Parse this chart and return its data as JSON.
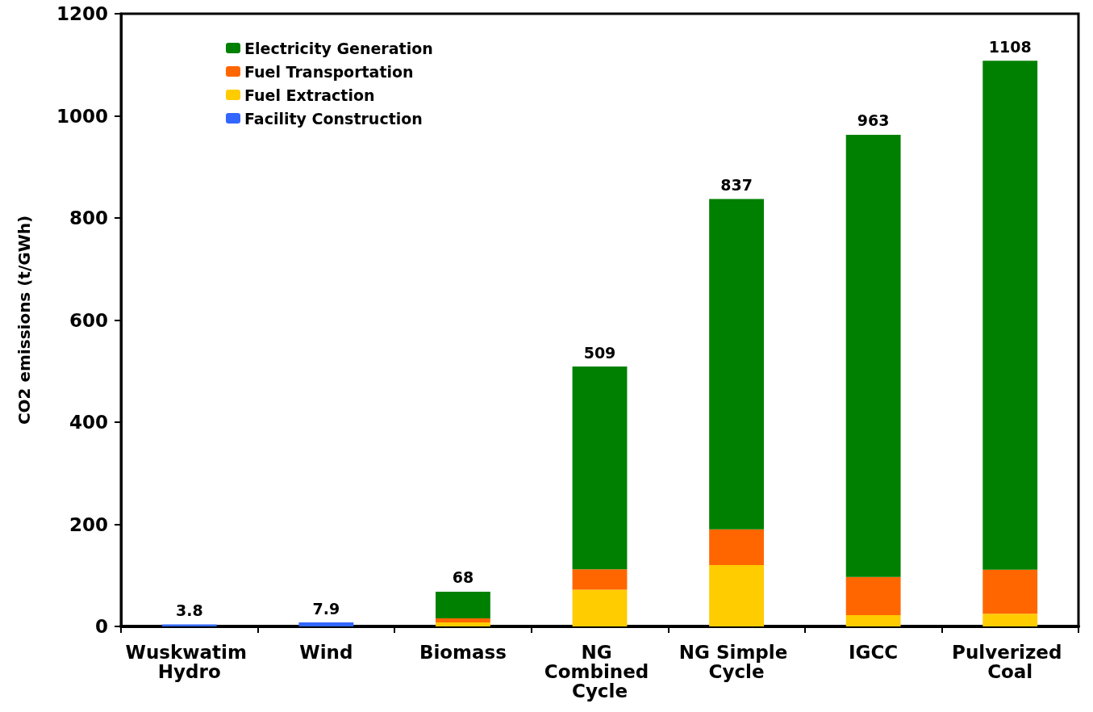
{
  "chart_data": {
    "type": "bar",
    "stacked": true,
    "ylabel": "CO2 emissions (t/GWh)",
    "categories": [
      "Wuskwatim Hydro",
      "Wind",
      "Biomass",
      "NG Combined Cycle",
      "NG Simple Cycle",
      "IGCC",
      "Pulverized Coal"
    ],
    "series": [
      {
        "name": "Facility Construction",
        "color": "#3366ff",
        "values": [
          3.8,
          7.9,
          null,
          null,
          null,
          null,
          null
        ]
      },
      {
        "name": "Fuel Extraction",
        "color": "#ffcc00",
        "values": [
          null,
          null,
          8,
          72,
          120,
          22,
          25
        ]
      },
      {
        "name": "Fuel Transportation",
        "color": "#ff6600",
        "values": [
          null,
          null,
          8,
          40,
          70,
          75,
          86
        ]
      },
      {
        "name": "Electricity Generation",
        "color": "#008000",
        "values": [
          null,
          null,
          52,
          397,
          647,
          866,
          997
        ]
      }
    ],
    "totals": [
      "3.8",
      "7.9",
      "68",
      "509",
      "837",
      "963",
      "1108"
    ],
    "ylim": [
      0,
      1200
    ],
    "yticks": [
      0,
      200,
      400,
      600,
      800,
      1000,
      1200
    ],
    "grid": false,
    "legend": "top left"
  }
}
